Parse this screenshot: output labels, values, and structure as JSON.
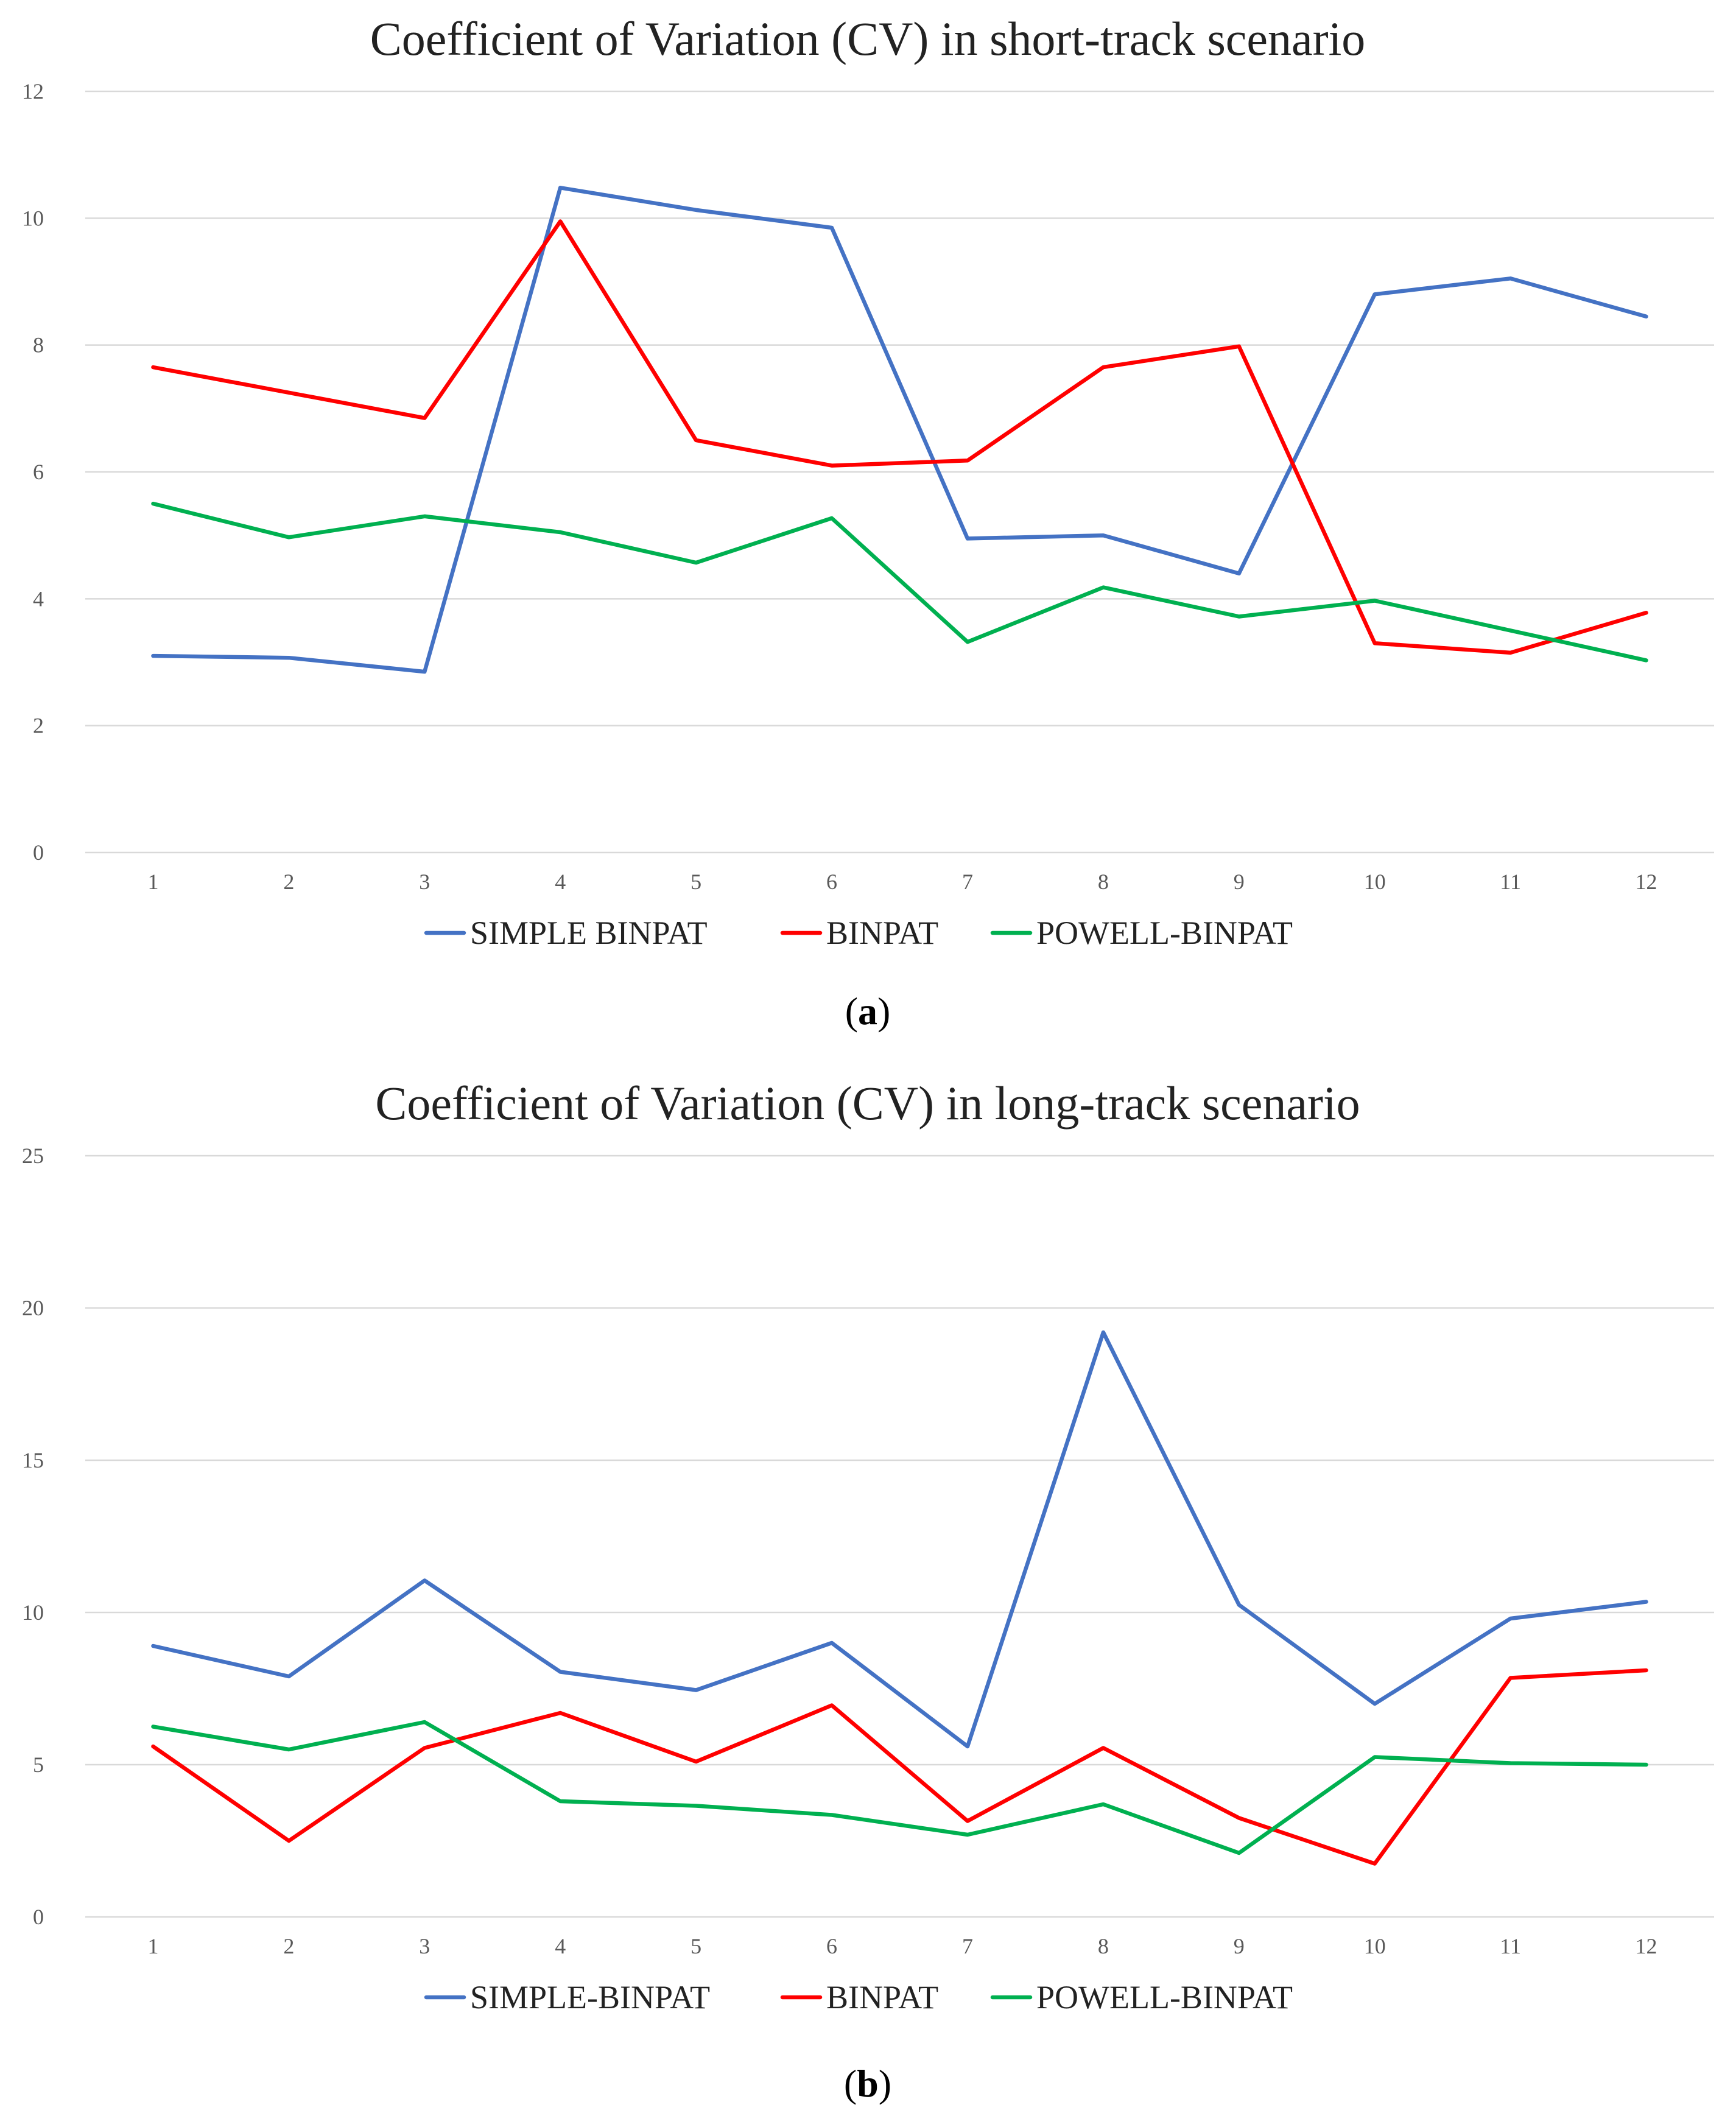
{
  "colors": {
    "simple": "#4472C4",
    "binpat": "#FF0000",
    "powell": "#00B050"
  },
  "chart_data": [
    {
      "type": "line",
      "title": "Coefficient of Variation (CV) in short-track scenario",
      "panel_label": {
        "open": "(",
        "letter": "a",
        "close": ")"
      },
      "categories": [
        "1",
        "2",
        "3",
        "4",
        "5",
        "6",
        "7",
        "8",
        "9",
        "10",
        "11",
        "12"
      ],
      "yticks": [
        "0",
        "2",
        "4",
        "6",
        "8",
        "10",
        "12"
      ],
      "ylim": [
        0,
        12
      ],
      "grid": true,
      "legend_position": "bottom",
      "series": [
        {
          "name": "SIMPLE BINPAT",
          "color": "#4472C4",
          "values": [
            3.1,
            3.07,
            2.85,
            10.48,
            10.13,
            9.85,
            4.95,
            5.0,
            4.4,
            8.8,
            9.05,
            8.45
          ]
        },
        {
          "name": "BINPAT",
          "color": "#FF0000",
          "values": [
            7.65,
            7.25,
            6.85,
            9.95,
            6.5,
            6.1,
            6.18,
            7.65,
            7.98,
            3.3,
            3.15,
            3.78
          ]
        },
        {
          "name": "POWELL-BINPAT",
          "color": "#00B050",
          "values": [
            5.5,
            4.97,
            5.3,
            5.05,
            4.57,
            5.27,
            3.32,
            4.18,
            3.72,
            3.97,
            3.5,
            3.03
          ]
        }
      ]
    },
    {
      "type": "line",
      "title": "Coefficient of Variation (CV) in long-track scenario",
      "panel_label": {
        "open": "(",
        "letter": "b",
        "close": ")"
      },
      "categories": [
        "1",
        "2",
        "3",
        "4",
        "5",
        "6",
        "7",
        "8",
        "9",
        "10",
        "11",
        "12"
      ],
      "yticks": [
        "0",
        "5",
        "10",
        "15",
        "20",
        "25"
      ],
      "ylim": [
        0,
        25
      ],
      "grid": true,
      "legend_position": "bottom",
      "series": [
        {
          "name": "SIMPLE-BINPAT",
          "color": "#4472C4",
          "values": [
            8.9,
            7.9,
            11.05,
            8.05,
            7.45,
            9.0,
            5.6,
            19.2,
            10.25,
            7.0,
            9.8,
            10.35
          ]
        },
        {
          "name": "BINPAT",
          "color": "#FF0000",
          "values": [
            5.6,
            2.5,
            5.55,
            6.7,
            5.1,
            6.95,
            3.15,
            5.55,
            3.25,
            1.75,
            7.85,
            8.1
          ]
        },
        {
          "name": "POWELL-BINPAT",
          "color": "#00B050",
          "values": [
            6.25,
            5.5,
            6.4,
            3.8,
            3.65,
            3.35,
            2.7,
            3.7,
            2.1,
            5.25,
            5.05,
            5.0
          ]
        }
      ]
    }
  ]
}
